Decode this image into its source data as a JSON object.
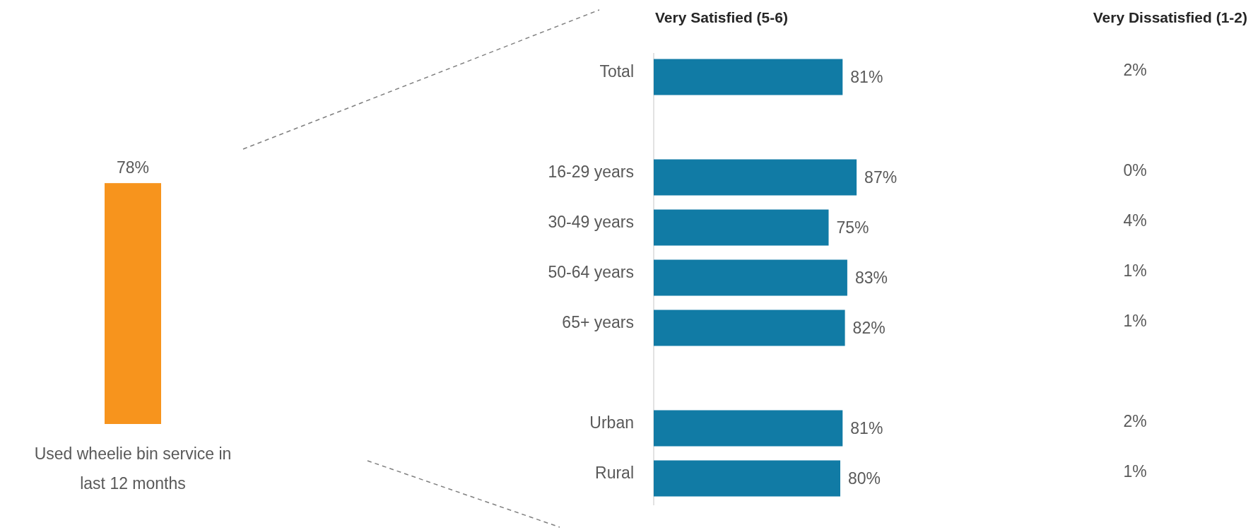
{
  "chart_data": [
    {
      "type": "bar",
      "categories": [
        "Used wheelie bin service in last 12 months"
      ],
      "values": [
        78
      ],
      "value_labels": [
        "78%"
      ],
      "color": "#f7941d"
    },
    {
      "type": "bar",
      "orientation": "horizontal",
      "title": "Very Satisfied (5-6)",
      "categories": [
        "Total",
        null,
        "16-29 years",
        "30-49 years",
        "50-64 years",
        "65+ years",
        null,
        "Urban",
        "Rural"
      ],
      "values": [
        81,
        null,
        87,
        75,
        83,
        82,
        null,
        81,
        80
      ],
      "value_labels": [
        "81%",
        null,
        "87%",
        "75%",
        "83%",
        "82%",
        null,
        "81%",
        "80%"
      ],
      "color": "#117ba5"
    },
    {
      "type": "other",
      "title": "Very Dissatisfied (1-2)",
      "categories": [
        null,
        null,
        null,
        null,
        null,
        null,
        null,
        null,
        null
      ],
      "values": [
        2,
        null,
        0,
        4,
        1,
        1,
        null,
        2,
        1
      ],
      "value_labels": [
        "2%",
        null,
        "0%",
        "4%",
        "1%",
        "1%",
        null,
        "2%",
        "1%"
      ]
    }
  ]
}
